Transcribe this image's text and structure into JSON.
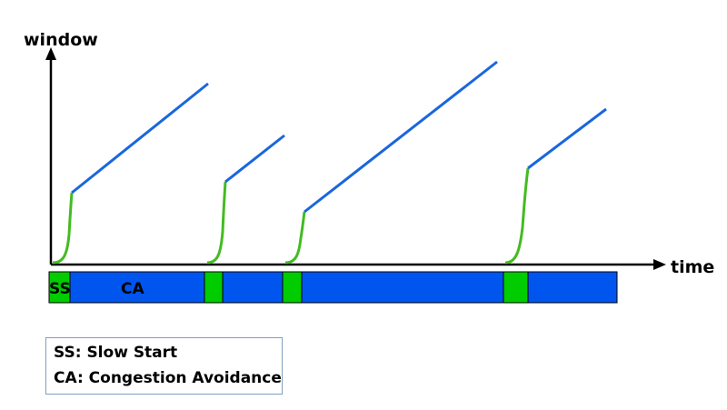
{
  "diagram": {
    "y_axis_label": "window",
    "x_axis_label": "time",
    "bar_labels": {
      "slow_start": "SS",
      "congestion_avoidance": "CA"
    },
    "colors": {
      "slow_start": "#00cc00",
      "congestion_avoidance": "#0055ee",
      "ss_curve": "#44bb22",
      "ca_line": "#1a66dd",
      "axis": "#000000"
    }
  },
  "legend": {
    "ss": "SS: Slow Start",
    "ca": "CA: Congestion Avoidance"
  }
}
